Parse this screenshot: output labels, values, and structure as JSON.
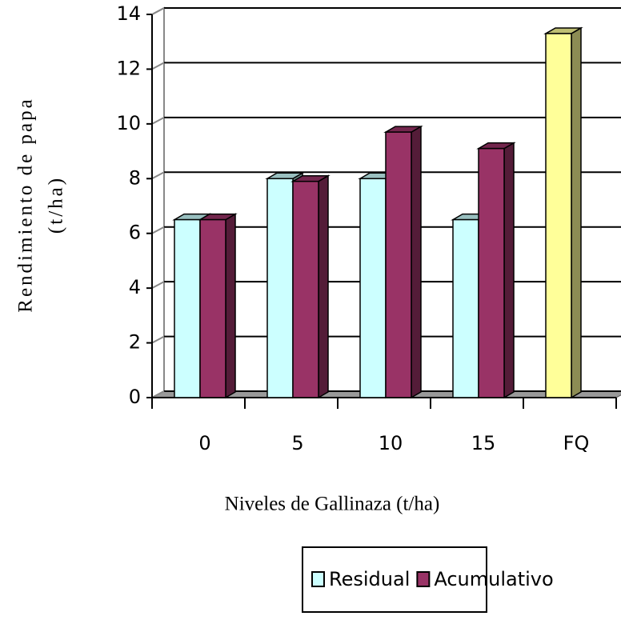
{
  "chart_data": {
    "type": "bar3d",
    "y_label": [
      "Rendimiento de papa",
      "(t/ha)"
    ],
    "x_label": "Niveles de Gallinaza (t/ha)",
    "categories": [
      "0",
      "5",
      "10",
      "15",
      "FQ"
    ],
    "series": [
      {
        "name": "Residual",
        "color": "#ccffff",
        "values": [
          6.5,
          8,
          8,
          6.5,
          null
        ]
      },
      {
        "name": "Acumulativo",
        "color": "#993366",
        "values": [
          6.5,
          7.9,
          9.7,
          9.1,
          null
        ]
      },
      {
        "color": "#ffff99",
        "values": [
          null,
          null,
          null,
          null,
          13.3
        ]
      }
    ],
    "ylim": [
      0,
      14
    ],
    "yticks": [
      0,
      2,
      4,
      6,
      8,
      10,
      12,
      14
    ],
    "grid": true,
    "legend": "bottom"
  }
}
